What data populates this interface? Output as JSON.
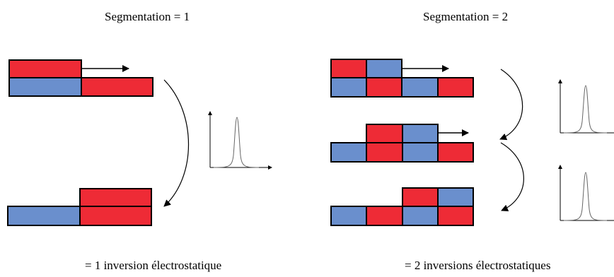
{
  "left_panel": {
    "title": "Segmentation = 1",
    "caption": "= 1 inversion électrostatique"
  },
  "right_panel": {
    "title": "Segmentation = 2",
    "caption": "= 2 inversions électrostatiques"
  },
  "colors": {
    "red": "#ee2b36",
    "blue": "#6a8fcd",
    "outline": "#000000",
    "peak": "#666666"
  }
}
